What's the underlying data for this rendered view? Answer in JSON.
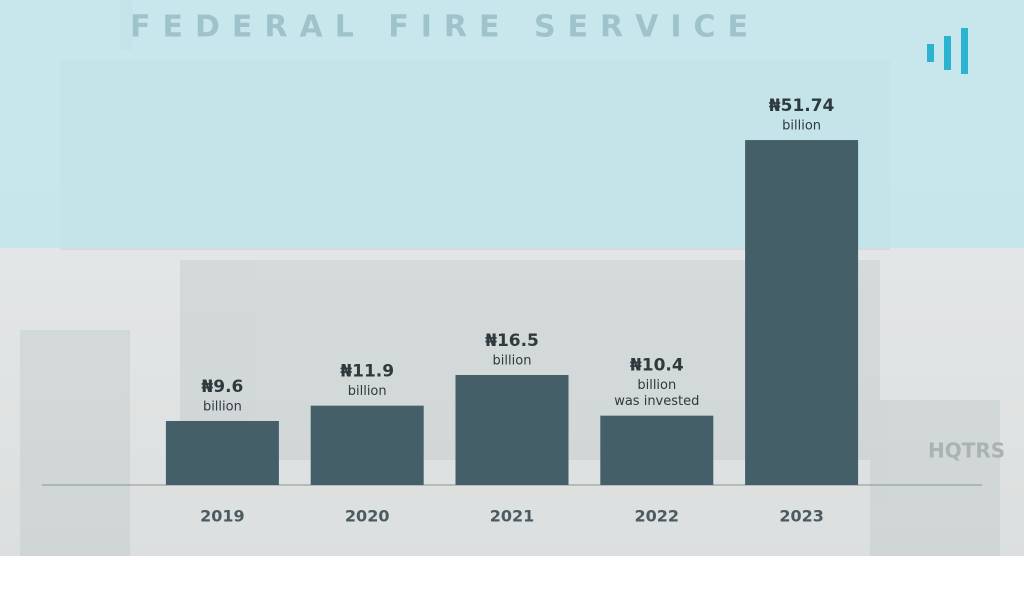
{
  "chart_data": {
    "type": "bar",
    "categories": [
      "2019",
      "2020",
      "2021",
      "2022",
      "2023"
    ],
    "values": [
      9.6,
      11.9,
      16.5,
      10.4,
      51.74
    ],
    "value_labels": [
      "₦9.6",
      "₦11.9",
      "₦16.5",
      "₦10.4",
      "₦51.74"
    ],
    "label_notes": [
      [
        "billion"
      ],
      [
        "billion"
      ],
      [
        "billion"
      ],
      [
        "billion",
        "was invested"
      ],
      [
        "billion"
      ]
    ],
    "color": "#455f68"
  },
  "background_signs": [
    "FEDERAL FIRE SERVICE",
    "HQTRS"
  ]
}
